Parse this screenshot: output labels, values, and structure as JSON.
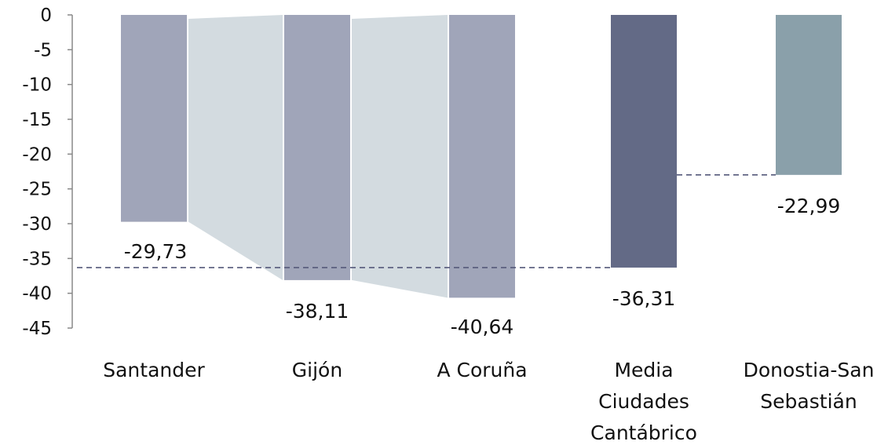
{
  "chart_data": {
    "type": "bar",
    "title": "",
    "xlabel": "",
    "ylabel": "",
    "ylim": [
      -45,
      0
    ],
    "yticks": [
      0,
      -5,
      -10,
      -15,
      -20,
      -25,
      -30,
      -35,
      -40,
      -45
    ],
    "ytick_labels": [
      "0",
      "-5",
      "-10",
      "-15",
      "-20",
      "-25",
      "-30",
      "-35",
      "-40",
      "-45"
    ],
    "grid": false,
    "legend": "none",
    "categories": [
      {
        "label_lines": [
          "Santander"
        ]
      },
      {
        "label_lines": [
          "Gijón"
        ]
      },
      {
        "label_lines": [
          "A Coruña"
        ]
      },
      {
        "label_lines": [
          "Media",
          "Ciudades",
          "Cantábrico"
        ]
      },
      {
        "label_lines": [
          "Donostia-San",
          "Sebastián"
        ]
      }
    ],
    "values": [
      -29.73,
      -38.11,
      -40.64,
      -36.31,
      -22.99
    ],
    "value_labels": [
      "-29,73",
      "-38,11",
      "-40,64",
      "-36,31",
      "-22,99"
    ],
    "bar_colors": [
      "#a0a5b9",
      "#a0a5b9",
      "#a0a5b9",
      "#636a86",
      "#8aa0aa"
    ],
    "connector_color": "#d3dbe0",
    "reference_line": {
      "value": -36.31,
      "color": "#55597a",
      "style": "dashed"
    },
    "reference_line_2": {
      "value": -22.99,
      "color": "#55597a",
      "style": "dashed"
    },
    "axis_color": "#888888"
  }
}
